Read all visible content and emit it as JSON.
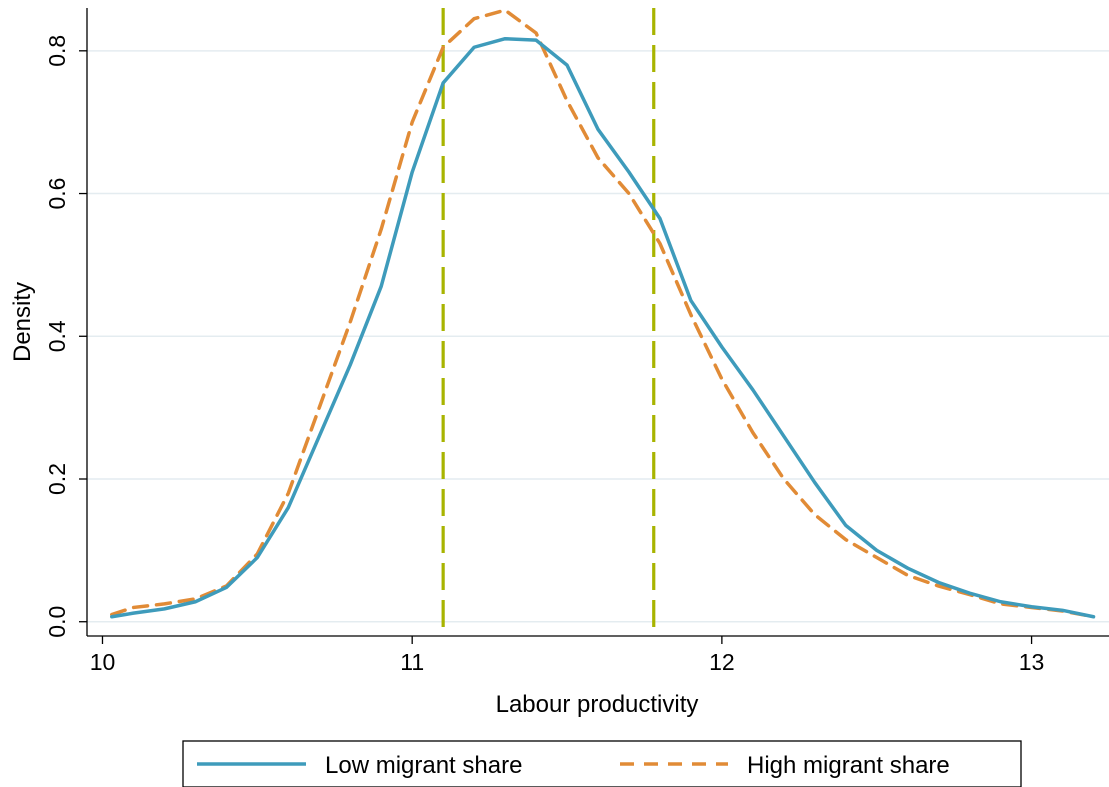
{
  "chart_data": {
    "type": "line",
    "title": "",
    "xlabel": "Labour productivity",
    "ylabel": "Density",
    "xlim": [
      9.95,
      13.25
    ],
    "ylim": [
      -0.02,
      0.86
    ],
    "xticks": [
      10,
      11,
      12,
      13
    ],
    "xtick_labels": [
      "10",
      "11",
      "12",
      "13"
    ],
    "yticks": [
      0,
      0.2,
      0.4,
      0.6,
      0.8
    ],
    "ytick_labels": [
      "0.0",
      "0.2",
      "0.4",
      "0.6",
      "0.8"
    ],
    "grid": true,
    "legend_position": "bottom",
    "vlines": [
      {
        "x": 11.1,
        "color": "#a8b400",
        "style": "dashed"
      },
      {
        "x": 11.78,
        "color": "#a8b400",
        "style": "dashed"
      }
    ],
    "series": [
      {
        "name": "Low migrant share",
        "color": "#3e9bbb",
        "style": "solid",
        "points": [
          [
            10.03,
            0.007
          ],
          [
            10.1,
            0.012
          ],
          [
            10.2,
            0.018
          ],
          [
            10.3,
            0.028
          ],
          [
            10.4,
            0.048
          ],
          [
            10.5,
            0.09
          ],
          [
            10.6,
            0.16
          ],
          [
            10.7,
            0.26
          ],
          [
            10.8,
            0.36
          ],
          [
            10.9,
            0.47
          ],
          [
            11.0,
            0.63
          ],
          [
            11.1,
            0.755
          ],
          [
            11.2,
            0.805
          ],
          [
            11.3,
            0.817
          ],
          [
            11.4,
            0.815
          ],
          [
            11.5,
            0.78
          ],
          [
            11.6,
            0.69
          ],
          [
            11.7,
            0.63
          ],
          [
            11.8,
            0.565
          ],
          [
            11.9,
            0.45
          ],
          [
            12.0,
            0.385
          ],
          [
            12.1,
            0.325
          ],
          [
            12.2,
            0.26
          ],
          [
            12.3,
            0.195
          ],
          [
            12.4,
            0.135
          ],
          [
            12.5,
            0.1
          ],
          [
            12.6,
            0.075
          ],
          [
            12.7,
            0.055
          ],
          [
            12.8,
            0.04
          ],
          [
            12.9,
            0.028
          ],
          [
            13.0,
            0.021
          ],
          [
            13.1,
            0.016
          ],
          [
            13.2,
            0.007
          ]
        ]
      },
      {
        "name": "High migrant share",
        "color": "#e18b36",
        "style": "dashed",
        "points": [
          [
            10.03,
            0.01
          ],
          [
            10.1,
            0.02
          ],
          [
            10.2,
            0.025
          ],
          [
            10.3,
            0.032
          ],
          [
            10.4,
            0.05
          ],
          [
            10.5,
            0.095
          ],
          [
            10.6,
            0.18
          ],
          [
            10.7,
            0.3
          ],
          [
            10.8,
            0.42
          ],
          [
            10.9,
            0.55
          ],
          [
            11.0,
            0.7
          ],
          [
            11.1,
            0.805
          ],
          [
            11.2,
            0.845
          ],
          [
            11.3,
            0.857
          ],
          [
            11.4,
            0.825
          ],
          [
            11.5,
            0.73
          ],
          [
            11.6,
            0.65
          ],
          [
            11.7,
            0.6
          ],
          [
            11.8,
            0.53
          ],
          [
            11.9,
            0.43
          ],
          [
            12.0,
            0.34
          ],
          [
            12.1,
            0.265
          ],
          [
            12.2,
            0.2
          ],
          [
            12.3,
            0.15
          ],
          [
            12.4,
            0.115
          ],
          [
            12.5,
            0.09
          ],
          [
            12.6,
            0.065
          ],
          [
            12.7,
            0.05
          ],
          [
            12.8,
            0.038
          ],
          [
            12.9,
            0.025
          ],
          [
            13.0,
            0.02
          ],
          [
            13.1,
            0.015
          ],
          [
            13.2,
            0.007
          ]
        ]
      }
    ]
  }
}
